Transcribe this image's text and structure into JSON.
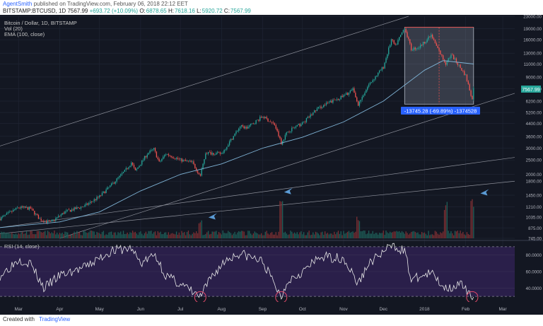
{
  "header": {
    "author": "AgentSmith",
    "published": "published on TradingView.com, February 06, 2018 22:12 EET",
    "symbol": "BITSTAMP:BTCUSD, 1D",
    "last": "7567.99",
    "change": "+693.72 (+10.09%)",
    "open_label": "O:",
    "open": "6878.65",
    "high_label": "H:",
    "high": "7618.16",
    "low_label": "L:",
    "low": "5920.72",
    "close_label": "C:",
    "close": "7567.99"
  },
  "legend": {
    "title": "Bitcoin / Dollar, 1D, BITSTAMP",
    "vol": "Vol (20)",
    "ema": "EMA (100, close)"
  },
  "rsi": {
    "label": "RSI (14, close)",
    "ticks": [
      "80.0000",
      "60.0000",
      "40.0000"
    ],
    "tick_values": [
      80,
      60,
      40
    ],
    "overbought": 90,
    "oversold": 30,
    "ylim": [
      25,
      95
    ]
  },
  "measure": {
    "text": "-13745.28 (-69.89%) -1374528"
  },
  "price_tag": "7567.99",
  "footer": {
    "created": "Created with",
    "brand": "TradingView"
  },
  "colors": {
    "background": "#131722",
    "up": "#26a69a",
    "down": "#ef5350",
    "ema": "#7fb3d5",
    "rsi_band": "#2a1f4a",
    "rsi_line": "#e8e8e8",
    "accent": "#2962ff"
  },
  "chart_data": {
    "type": "line",
    "scale": "log",
    "ylim": [
      745,
      23000
    ],
    "y_ticks": [
      23000,
      19000,
      16000,
      13000,
      11000,
      9000,
      7500,
      6200,
      5200,
      4400,
      3600,
      3000,
      2500,
      2000,
      1800,
      1450,
      1210,
      1035,
      875,
      745
    ],
    "y_tick_labels": [
      "23000.00",
      "19000.00",
      "16000.00",
      "13000.00",
      "11000.00",
      "9000.00",
      "7500.00",
      "6200.00",
      "5200.00",
      "4400.00",
      "3600.00",
      "3000.00",
      "2500.00",
      "2000.00",
      "1800.00",
      "1450.00",
      "1210.00",
      "1035.00",
      "875.00",
      "745.00"
    ],
    "x_range": [
      "2017-02-15",
      "2018-03-10"
    ],
    "x_ticks": [
      {
        "label": "Mar",
        "date": "2017-03-01"
      },
      {
        "label": "Apr",
        "date": "2017-04-01"
      },
      {
        "label": "May",
        "date": "2017-05-01"
      },
      {
        "label": "Jun",
        "date": "2017-06-01"
      },
      {
        "label": "Jul",
        "date": "2017-07-01"
      },
      {
        "label": "Aug",
        "date": "2017-08-01"
      },
      {
        "label": "Sep",
        "date": "2017-09-01"
      },
      {
        "label": "Oct",
        "date": "2017-10-01"
      },
      {
        "label": "Nov",
        "date": "2017-11-01"
      },
      {
        "label": "Dec",
        "date": "2017-12-01"
      },
      {
        "label": "2018",
        "date": "2018-01-01"
      },
      {
        "label": "Feb",
        "date": "2018-02-01"
      },
      {
        "label": "Mar",
        "date": "2018-03-01"
      }
    ],
    "price_path": [
      [
        "2017-02-15",
        1010
      ],
      [
        "2017-03-01",
        1200
      ],
      [
        "2017-03-10",
        1180
      ],
      [
        "2017-03-17",
        1000
      ],
      [
        "2017-03-25",
        950
      ],
      [
        "2017-04-05",
        1120
      ],
      [
        "2017-04-20",
        1230
      ],
      [
        "2017-05-01",
        1420
      ],
      [
        "2017-05-10",
        1700
      ],
      [
        "2017-05-20",
        2100
      ],
      [
        "2017-05-25",
        2400
      ],
      [
        "2017-05-28",
        2100
      ],
      [
        "2017-06-06",
        2750
      ],
      [
        "2017-06-11",
        2950
      ],
      [
        "2017-06-15",
        2400
      ],
      [
        "2017-06-20",
        2750
      ],
      [
        "2017-07-01",
        2500
      ],
      [
        "2017-07-10",
        2400
      ],
      [
        "2017-07-16",
        1950
      ],
      [
        "2017-07-20",
        2800
      ],
      [
        "2017-08-01",
        2750
      ],
      [
        "2017-08-08",
        3400
      ],
      [
        "2017-08-15",
        4200
      ],
      [
        "2017-08-20",
        4100
      ],
      [
        "2017-09-01",
        4900
      ],
      [
        "2017-09-10",
        4300
      ],
      [
        "2017-09-15",
        3250
      ],
      [
        "2017-09-20",
        3900
      ],
      [
        "2017-10-01",
        4400
      ],
      [
        "2017-10-12",
        5500
      ],
      [
        "2017-10-20",
        6000
      ],
      [
        "2017-11-01",
        6700
      ],
      [
        "2017-11-08",
        7400
      ],
      [
        "2017-11-12",
        5900
      ],
      [
        "2017-11-20",
        8000
      ],
      [
        "2017-12-01",
        10500
      ],
      [
        "2017-12-07",
        16000
      ],
      [
        "2017-12-10",
        14500
      ],
      [
        "2017-12-17",
        19400
      ],
      [
        "2017-12-22",
        13800
      ],
      [
        "2017-12-28",
        14300
      ],
      [
        "2018-01-06",
        17100
      ],
      [
        "2018-01-10",
        14500
      ],
      [
        "2018-01-17",
        11000
      ],
      [
        "2018-01-21",
        12800
      ],
      [
        "2018-02-01",
        9200
      ],
      [
        "2018-02-06",
        6400
      ],
      [
        "2018-02-07",
        7568
      ]
    ],
    "ema_path": [
      [
        "2017-02-15",
        880
      ],
      [
        "2017-04-01",
        960
      ],
      [
        "2017-05-01",
        1120
      ],
      [
        "2017-06-01",
        1550
      ],
      [
        "2017-07-01",
        2000
      ],
      [
        "2017-08-01",
        2350
      ],
      [
        "2017-09-01",
        3000
      ],
      [
        "2017-10-01",
        3550
      ],
      [
        "2017-11-01",
        4500
      ],
      [
        "2017-12-01",
        6200
      ],
      [
        "2018-01-01",
        10000
      ],
      [
        "2018-01-15",
        11600
      ],
      [
        "2018-02-07",
        11000
      ]
    ],
    "rsi_path": [
      [
        "2017-02-15",
        55
      ],
      [
        "2017-03-01",
        75
      ],
      [
        "2017-03-10",
        70
      ],
      [
        "2017-03-20",
        40
      ],
      [
        "2017-04-01",
        55
      ],
      [
        "2017-04-20",
        65
      ],
      [
        "2017-05-10",
        85
      ],
      [
        "2017-05-25",
        88
      ],
      [
        "2017-06-01",
        70
      ],
      [
        "2017-06-12",
        80
      ],
      [
        "2017-06-20",
        55
      ],
      [
        "2017-07-01",
        45
      ],
      [
        "2017-07-16",
        29
      ],
      [
        "2017-07-25",
        55
      ],
      [
        "2017-08-05",
        75
      ],
      [
        "2017-08-15",
        82
      ],
      [
        "2017-09-01",
        72
      ],
      [
        "2017-09-15",
        29
      ],
      [
        "2017-09-20",
        50
      ],
      [
        "2017-10-01",
        60
      ],
      [
        "2017-10-15",
        78
      ],
      [
        "2017-11-01",
        76
      ],
      [
        "2017-11-12",
        45
      ],
      [
        "2017-11-20",
        70
      ],
      [
        "2017-12-08",
        92
      ],
      [
        "2017-12-17",
        85
      ],
      [
        "2017-12-22",
        50
      ],
      [
        "2018-01-06",
        58
      ],
      [
        "2018-01-17",
        40
      ],
      [
        "2018-01-28",
        45
      ],
      [
        "2018-02-06",
        27
      ],
      [
        "2018-02-07",
        35
      ]
    ],
    "volume_spikes": [
      [
        "2017-07-16",
        0.3
      ],
      [
        "2017-09-15",
        0.72
      ],
      [
        "2017-11-12",
        0.4
      ],
      [
        "2018-01-17",
        0.62
      ],
      [
        "2018-02-06",
        0.7
      ]
    ],
    "measure_box": {
      "from": "2017-12-17",
      "to": "2018-02-07",
      "high": 19400,
      "low": 5920
    },
    "trendlines": [
      {
        "from": [
          "2017-02-15",
          3100
        ],
        "to": [
          "2017-12-20",
          23000
        ]
      },
      {
        "from": [
          "2017-02-15",
          880
        ],
        "to": [
          "2018-03-10",
          2600
        ]
      },
      {
        "from": [
          "2017-02-15",
          800
        ],
        "to": [
          "2018-03-10",
          1800
        ]
      },
      {
        "from": [
          "2017-04-01",
          745
        ],
        "to": [
          "2018-03-10",
          7000
        ]
      }
    ],
    "arrows": [
      "2017-07-20",
      "2017-09-15",
      "2018-02-10"
    ],
    "circles": [
      "2017-07-16",
      "2017-09-15",
      "2018-02-06"
    ]
  }
}
